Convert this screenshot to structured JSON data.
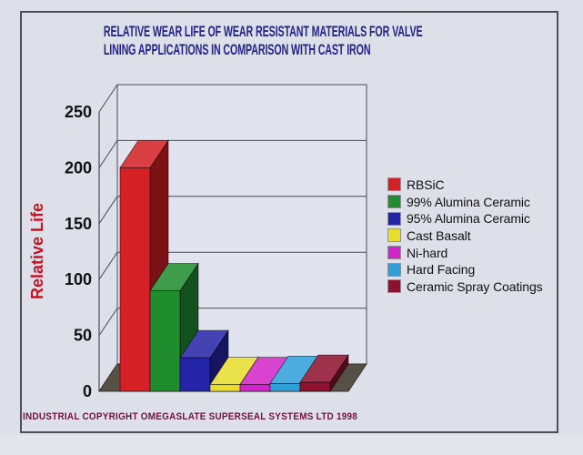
{
  "slide": {
    "title_line1": "RELATIVE WEAR LIFE OF WEAR RESISTANT MATERIALS FOR VALVE",
    "title_line2": "LINING APPLICATIONS IN COMPARISON WITH CAST IRON",
    "copyright": "INDUSTRIAL COPYRIGHT OMEGASLATE SUPERSEAL SYSTEMS LTD 1998"
  },
  "chart_data": {
    "type": "bar",
    "projection": "3d",
    "title": "RELATIVE WEAR LIFE OF WEAR RESISTANT MATERIALS FOR VALVE LINING APPLICATIONS IN COMPARISON WITH CAST IRON",
    "ylabel": "Relative Life",
    "xlabel": "",
    "ylim": [
      0,
      250
    ],
    "yticks": [
      0,
      50,
      100,
      150,
      200,
      250
    ],
    "grid": true,
    "legend_position": "right",
    "categories": [
      "RBSiC",
      "99% Alumina Ceramic",
      "95% Alumina Ceramic",
      "Cast Basalt",
      "Ni-hard",
      "Hard Facing",
      "Ceramic Spray Coatings"
    ],
    "values": [
      200,
      90,
      30,
      6,
      6,
      7,
      8
    ],
    "colors": [
      "#d42026",
      "#1f8c2e",
      "#2424a8",
      "#e8dd2e",
      "#d224c8",
      "#2f9fd8",
      "#8e1130"
    ]
  },
  "style": {
    "background": "#dee0e9",
    "wall": "#e1e3ee",
    "floor": "#575046",
    "gridline": "#4a4a55",
    "frame_border": "#50505a",
    "title_color": "#23238c",
    "ylabel_color": "#cc1022",
    "tick_color": "#111111",
    "legend_text_color": "#101010",
    "copyright_color": "#6e1240"
  }
}
